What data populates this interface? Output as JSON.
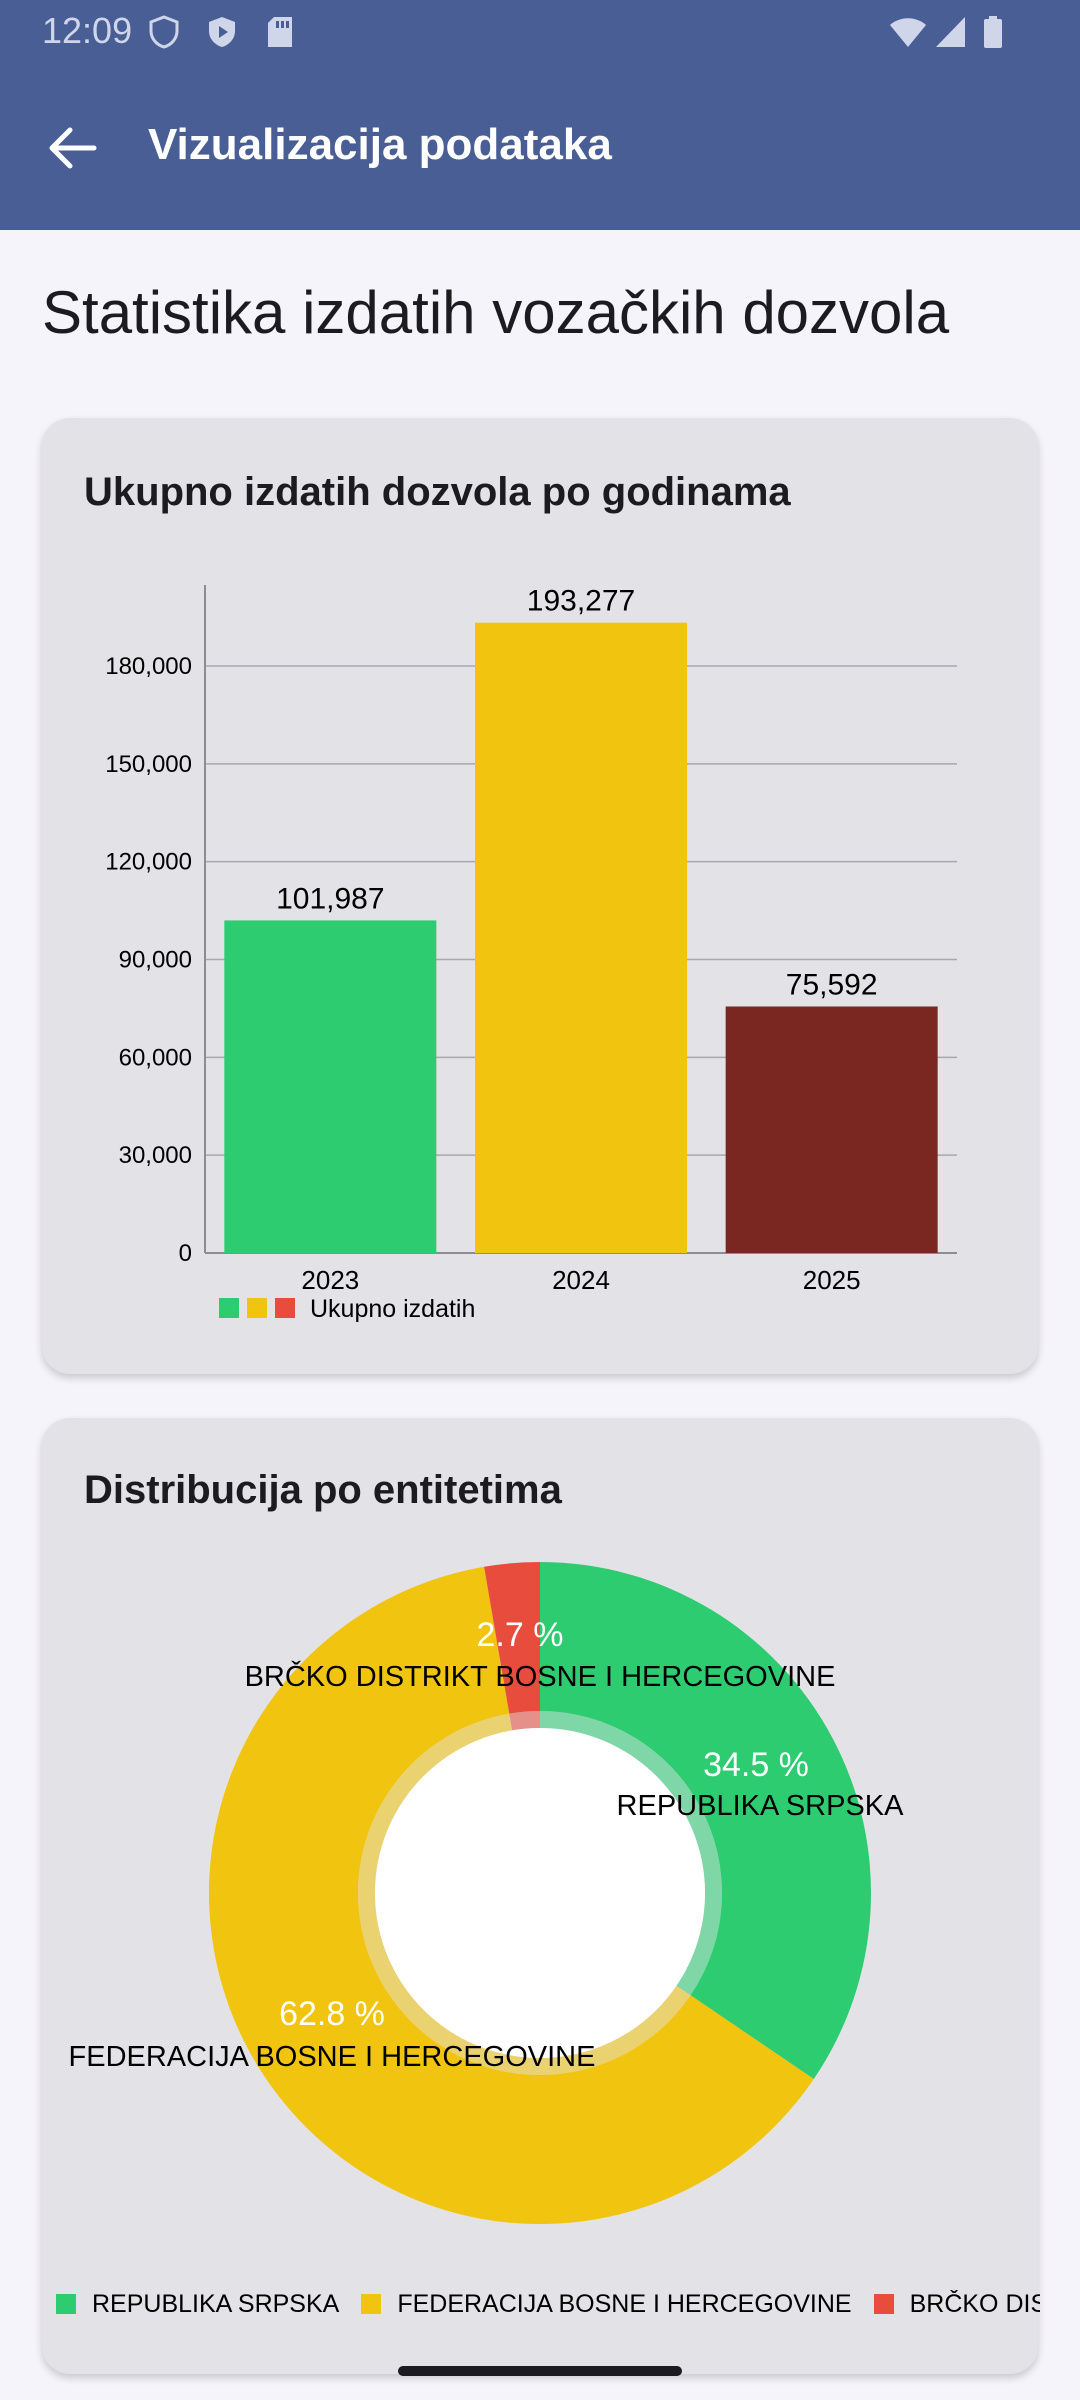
{
  "status_bar": {
    "time": "12:09"
  },
  "app_bar": {
    "title": "Vizualizacija podataka",
    "back_icon": "arrow-back-icon"
  },
  "page": {
    "title": "Statistika izdatih vozačkih dozvola"
  },
  "bar_card": {
    "title": "Ukupno izdatih dozvola po godinama",
    "legend_label": "Ukupno izdatih"
  },
  "pie_card": {
    "title": "Distribucija po entitetima"
  },
  "colors": {
    "green": "#2ecc71",
    "yellow": "#f1c40f",
    "dark_red": "#7b2721",
    "red": "#e74c3c",
    "app_bar": "#4a5e96"
  },
  "chart_data": [
    {
      "type": "bar",
      "title": "Ukupno izdatih dozvola po godinama",
      "categories": [
        "2023",
        "2024",
        "2025"
      ],
      "series": [
        {
          "name": "Ukupno izdatih",
          "values": [
            101987,
            193277,
            75592
          ]
        }
      ],
      "value_labels": [
        "101,987",
        "193,277",
        "75,592"
      ],
      "bar_colors": [
        "#2ecc71",
        "#f1c40f",
        "#7b2721"
      ],
      "ylim": [
        0,
        204000
      ],
      "yticks": [
        0,
        30000,
        60000,
        90000,
        120000,
        150000,
        180000
      ],
      "ytick_labels": [
        "0",
        "30,000",
        "60,000",
        "90,000",
        "120,000",
        "150,000",
        "180,000"
      ],
      "grid": true,
      "legend_placement": "bottom-left",
      "legend_colors": [
        "#2ecc71",
        "#f1c40f",
        "#e74c3c"
      ]
    },
    {
      "type": "pie",
      "title": "Distribucija po entitetima",
      "donut": true,
      "slices": [
        {
          "label": "REPUBLIKA SRPSKA",
          "value": 34.5,
          "percent_label": "34.5 %",
          "color": "#2ecc71"
        },
        {
          "label": "FEDERACIJA BOSNE I HERCEGOVINE",
          "value": 62.8,
          "percent_label": "62.8 %",
          "color": "#f1c40f"
        },
        {
          "label": "BRČKO DISTRIKT BOSNE I HERCEGOVINE",
          "value": 2.7,
          "percent_label": "2.7 %",
          "color": "#e74c3c"
        }
      ],
      "legend_placement": "bottom",
      "legend": [
        {
          "label": "REPUBLIKA SRPSKA",
          "color": "#2ecc71"
        },
        {
          "label": "FEDERACIJA BOSNE I HERCEGOVINE",
          "color": "#f1c40f"
        },
        {
          "label": "BRČKO DISTRIKT BOSNE I HERCEGOVINE",
          "color": "#e74c3c"
        }
      ]
    }
  ]
}
